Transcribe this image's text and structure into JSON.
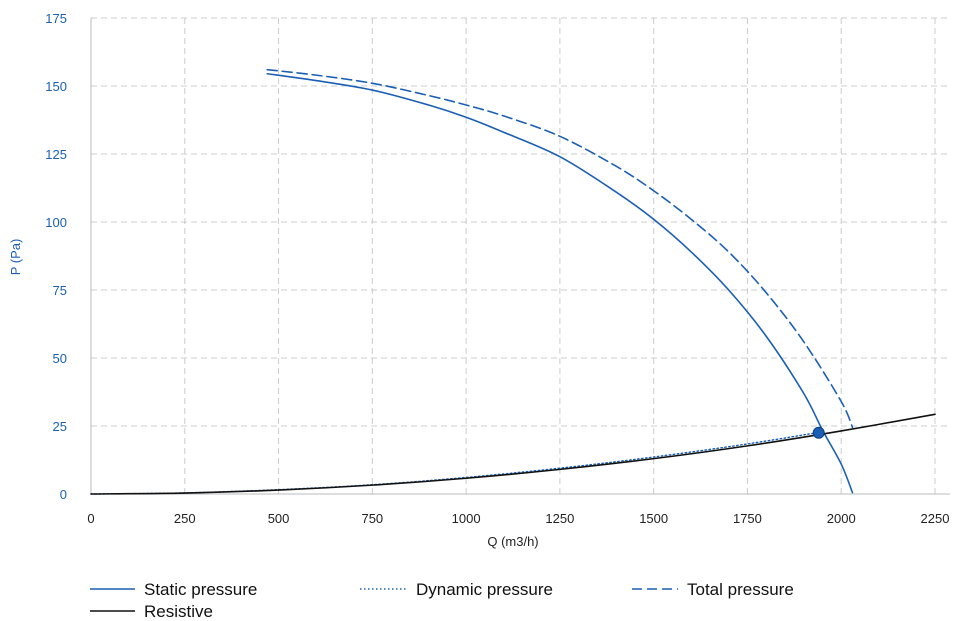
{
  "chart_data": {
    "type": "line",
    "xlabel": "Q (m3/h)",
    "ylabel": "P (Pa)",
    "xlim": [
      0,
      2250
    ],
    "ylim": [
      0,
      175
    ],
    "x_ticks": [
      0,
      250,
      500,
      750,
      1000,
      1250,
      1500,
      1750,
      2000,
      2250
    ],
    "y_ticks": [
      0,
      25,
      50,
      75,
      100,
      125,
      150,
      175
    ],
    "grid": true,
    "legend_position": "bottom",
    "colors": {
      "blue": "#1a5fb4",
      "black": "#111111",
      "grid": "#cccccc"
    },
    "series": [
      {
        "name": "Static pressure",
        "style": "solid",
        "color": "#1a5fb4",
        "x": [
          470,
          600,
          750,
          900,
          1000,
          1100,
          1250,
          1400,
          1500,
          1600,
          1700,
          1800,
          1900,
          1950,
          2000,
          2030
        ],
        "y": [
          154.5,
          152,
          148.5,
          143,
          138.5,
          133,
          124,
          111,
          101,
          89,
          75,
          58,
          37,
          23.5,
          11,
          0.5
        ]
      },
      {
        "name": "Dynamic pressure",
        "style": "dotted",
        "color": "#1a5fb4",
        "x": [
          0,
          250,
          500,
          750,
          1000,
          1250,
          1500,
          1750,
          1950
        ],
        "y": [
          0,
          0.4,
          1.6,
          3.4,
          6.1,
          9.5,
          13.6,
          18.4,
          22.9
        ]
      },
      {
        "name": "Total pressure",
        "style": "dashed",
        "color": "#1a5fb4",
        "x": [
          470,
          600,
          750,
          900,
          1000,
          1100,
          1250,
          1400,
          1500,
          1600,
          1700,
          1800,
          1900,
          2000,
          2030
        ],
        "y": [
          156,
          154,
          151,
          146.5,
          143,
          139,
          131.5,
          120.5,
          111.5,
          101,
          89,
          74,
          56,
          34,
          24.5
        ]
      },
      {
        "name": "Resistive",
        "style": "solid",
        "color": "#111111",
        "x": [
          0,
          250,
          500,
          750,
          1000,
          1250,
          1500,
          1750,
          2000,
          2250
        ],
        "y": [
          0,
          0.36,
          1.45,
          3.26,
          5.79,
          9.05,
          13.0,
          17.7,
          23.2,
          29.3
        ]
      }
    ],
    "operating_point": {
      "x": 1940,
      "y": 22.5,
      "color": "#1a5fb4"
    }
  }
}
